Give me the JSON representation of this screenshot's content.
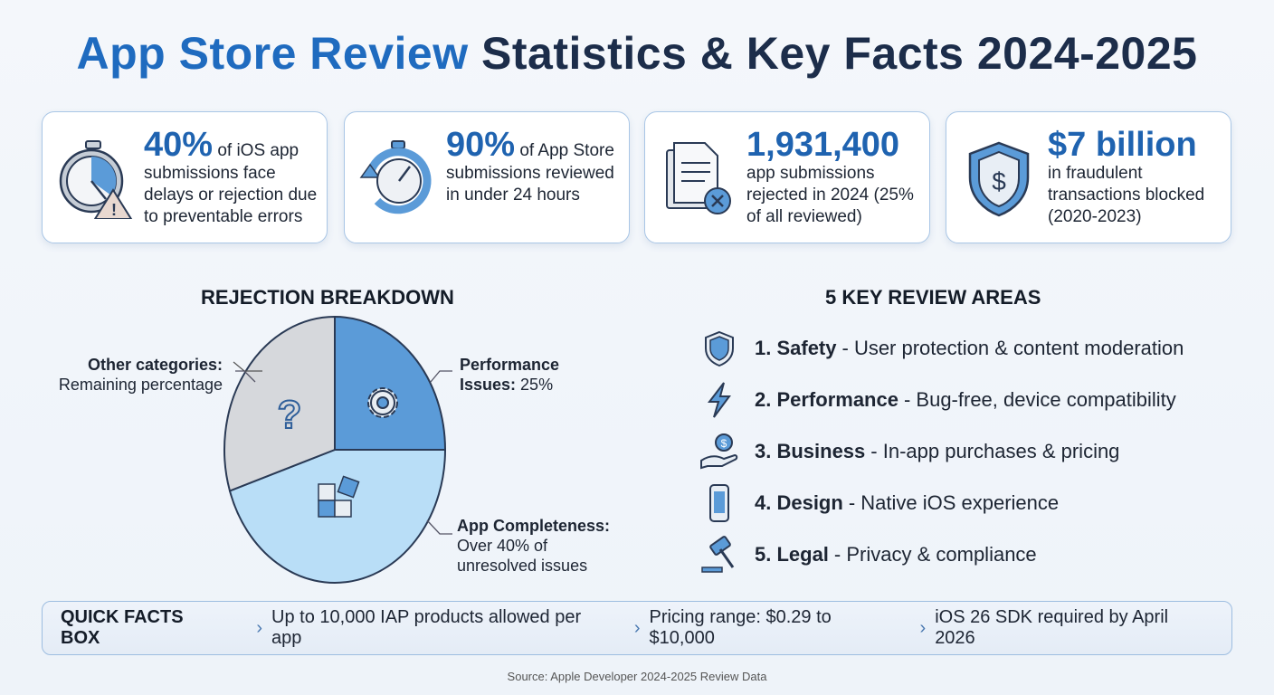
{
  "title": {
    "highlight": "App Store Review",
    "rest": " Statistics & Key Facts 2024-2025"
  },
  "cards": [
    {
      "icon": "stopwatch-warning-icon",
      "big": "40%",
      "text": " of iOS app submissions face delays or rejection due to preventable errors"
    },
    {
      "icon": "stopwatch-refresh-icon",
      "big": "90%",
      "text": " of App Store submissions reviewed in under 24 hours"
    },
    {
      "icon": "rejected-document-icon",
      "big": "1,931,400",
      "text": "app submissions rejected in 2024 (25% of all reviewed)"
    },
    {
      "icon": "shield-dollar-icon",
      "big": "$7 billion",
      "text": "in fraudulent transactions blocked (2020-2023)"
    }
  ],
  "rejection": {
    "heading": "REJECTION BREAKDOWN"
  },
  "chart_data": {
    "type": "pie",
    "title": "REJECTION BREAKDOWN",
    "slices": [
      {
        "name": "Performance Issues",
        "label_bold": "Performance Issues:",
        "label_text": " 25%",
        "value": 25,
        "color": "#5b9bd8",
        "icon": "gear-icon"
      },
      {
        "name": "App Completeness",
        "label_bold": "App Completeness:",
        "label_text": "Over 40% of unresolved issues",
        "value": 45,
        "color": "#b9def7",
        "icon": "puzzle-icon"
      },
      {
        "name": "Other categories",
        "label_bold": "Other categories:",
        "label_text": "Remaining percentage",
        "value": 30,
        "color": "#d6d8dc",
        "icon": "question-icon"
      }
    ]
  },
  "areas": {
    "heading": "5 KEY REVIEW AREAS",
    "items": [
      {
        "icon": "shield-icon",
        "name": "1. Safety",
        "desc": "- User protection & content moderation"
      },
      {
        "icon": "lightning-icon",
        "name": "2. Performance",
        "desc": "- Bug-free, device compatibility"
      },
      {
        "icon": "hand-coin-icon",
        "name": "3. Business",
        "desc": "- In-app purchases & pricing"
      },
      {
        "icon": "phone-icon",
        "name": "4. Design",
        "desc": "- Native iOS experience"
      },
      {
        "icon": "gavel-icon",
        "name": "5. Legal",
        "desc": "- Privacy & compliance"
      }
    ]
  },
  "quick_facts": {
    "title": "QUICK FACTS BOX",
    "items": [
      "Up to 10,000 IAP products allowed per app",
      "Pricing range: $0.29 to $10,000",
      "iOS 26 SDK required by April 2026"
    ]
  },
  "source": "Source: Apple Developer 2024-2025 Review Data"
}
